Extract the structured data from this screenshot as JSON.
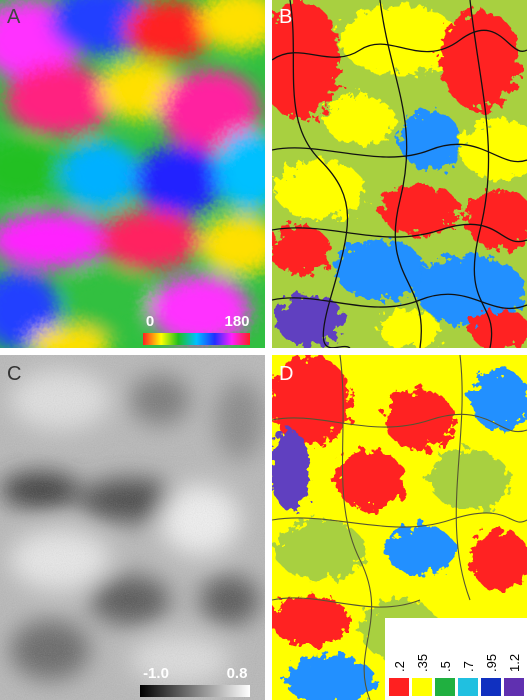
{
  "panels": [
    {
      "label": "A",
      "colorbar": {
        "min_label": "0",
        "max_label": "180"
      }
    },
    {
      "label": "B"
    },
    {
      "label": "C",
      "colorbar": {
        "min_label": "-1.0",
        "max_label": "0.8"
      }
    },
    {
      "label": "D",
      "legend": {
        "labels": [
          ".2",
          ".35",
          ".5",
          ".7",
          ".95",
          "1.2"
        ]
      }
    }
  ]
}
